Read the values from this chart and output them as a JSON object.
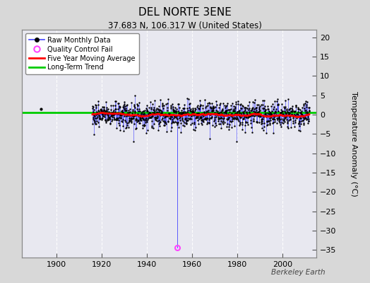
{
  "title": "DEL NORTE 3ENE",
  "subtitle": "37.683 N, 106.317 W (United States)",
  "ylabel": "Temperature Anomaly (°C)",
  "watermark": "Berkeley Earth",
  "xlim": [
    1885,
    2015
  ],
  "ylim": [
    -37,
    22
  ],
  "yticks": [
    -35,
    -30,
    -25,
    -20,
    -15,
    -10,
    -5,
    0,
    5,
    10,
    15,
    20
  ],
  "xticks": [
    1900,
    1920,
    1940,
    1960,
    1980,
    2000
  ],
  "bg_color": "#d8d8d8",
  "plot_bg_color": "#e8e8f0",
  "grid_color": "white",
  "raw_stem_color": "#4444ff",
  "raw_dot_color": "#000000",
  "ma_color": "#ff0000",
  "trend_color": "#00cc00",
  "qc_color": "#ff44ff",
  "seed": 42,
  "start_year": 1895,
  "end_year": 2011,
  "months_per_year": 12,
  "qc_fail_year": 1953,
  "qc_fail_month": 5,
  "qc_fail_value": -34.5,
  "isolated_point_year": 1893.3,
  "isolated_point_value": 1.5,
  "trend_y": 0.5,
  "ma_window": 60,
  "noise_scale": 1.6,
  "spike_prob": 0.06,
  "spike_scale": 2.5,
  "data_start_year": 1916,
  "title_fontsize": 11,
  "subtitle_fontsize": 8.5,
  "tick_labelsize": 8,
  "ylabel_fontsize": 8
}
